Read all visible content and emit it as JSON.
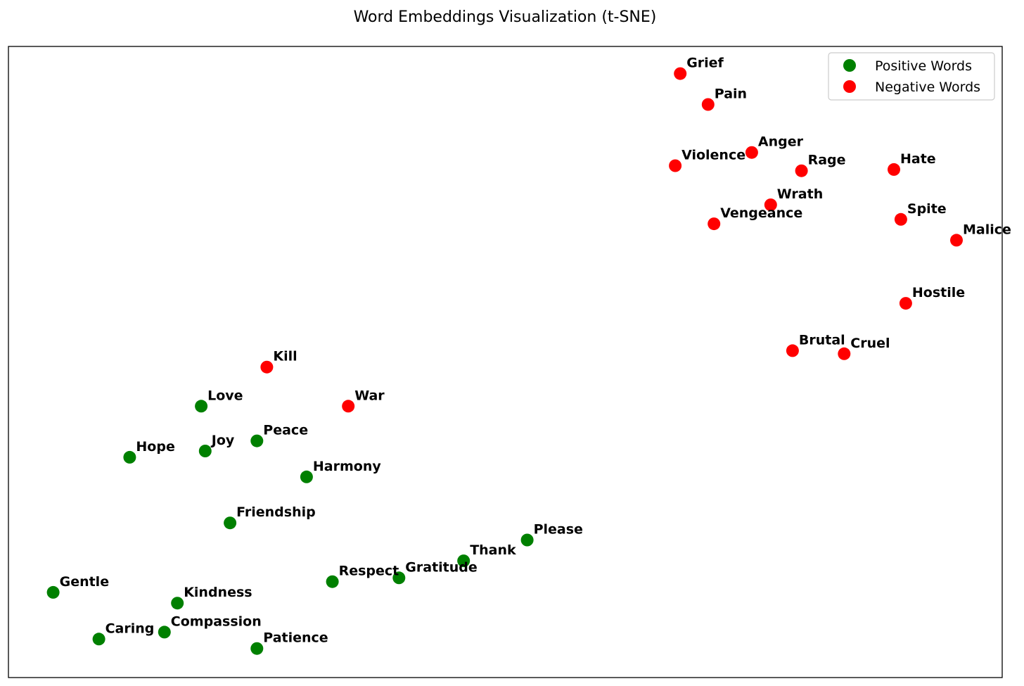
{
  "chart_data": {
    "type": "scatter",
    "title": "Word Embeddings Visualization (t-SNE)",
    "xlabel": "",
    "ylabel": "",
    "xlim": [
      0,
      100
    ],
    "ylim": [
      0,
      100
    ],
    "axis_ticks": false,
    "grid": false,
    "legend": "top-right",
    "series": [
      {
        "name": "Positive Words",
        "color": "#008000",
        "points": [
          {
            "label": "Love",
            "x": 19.4,
            "y": 43.0
          },
          {
            "label": "Peace",
            "x": 25.0,
            "y": 37.5
          },
          {
            "label": "Joy",
            "x": 19.8,
            "y": 35.9
          },
          {
            "label": "Hope",
            "x": 12.2,
            "y": 34.9
          },
          {
            "label": "Harmony",
            "x": 30.0,
            "y": 31.8
          },
          {
            "label": "Friendship",
            "x": 22.3,
            "y": 24.5
          },
          {
            "label": "Please",
            "x": 52.2,
            "y": 21.8
          },
          {
            "label": "Thank",
            "x": 45.8,
            "y": 18.5
          },
          {
            "label": "Gratitude",
            "x": 39.3,
            "y": 15.8
          },
          {
            "label": "Respect",
            "x": 32.6,
            "y": 15.2
          },
          {
            "label": "Gentle",
            "x": 4.5,
            "y": 13.5
          },
          {
            "label": "Kindness",
            "x": 17.0,
            "y": 11.8
          },
          {
            "label": "Compassion",
            "x": 15.7,
            "y": 7.2
          },
          {
            "label": "Caring",
            "x": 9.1,
            "y": 6.1
          },
          {
            "label": "Patience",
            "x": 25.0,
            "y": 4.6
          }
        ]
      },
      {
        "name": "Negative Words",
        "color": "#ff0000",
        "points": [
          {
            "label": "Grief",
            "x": 67.6,
            "y": 95.7
          },
          {
            "label": "Pain",
            "x": 70.4,
            "y": 90.8
          },
          {
            "label": "Anger",
            "x": 74.8,
            "y": 83.2
          },
          {
            "label": "Violence",
            "x": 67.1,
            "y": 81.1
          },
          {
            "label": "Rage",
            "x": 79.8,
            "y": 80.3
          },
          {
            "label": "Hate",
            "x": 89.1,
            "y": 80.5
          },
          {
            "label": "Wrath",
            "x": 76.7,
            "y": 74.9
          },
          {
            "label": "Vengeance",
            "x": 71.0,
            "y": 71.9
          },
          {
            "label": "Spite",
            "x": 89.8,
            "y": 72.6
          },
          {
            "label": "Malice",
            "x": 95.4,
            "y": 69.3
          },
          {
            "label": "Hostile",
            "x": 90.3,
            "y": 59.3
          },
          {
            "label": "Brutal",
            "x": 78.9,
            "y": 51.8
          },
          {
            "label": "Cruel",
            "x": 84.1,
            "y": 51.3
          },
          {
            "label": "Kill",
            "x": 26.0,
            "y": 49.2
          },
          {
            "label": "War",
            "x": 34.2,
            "y": 43.0
          }
        ]
      }
    ]
  }
}
